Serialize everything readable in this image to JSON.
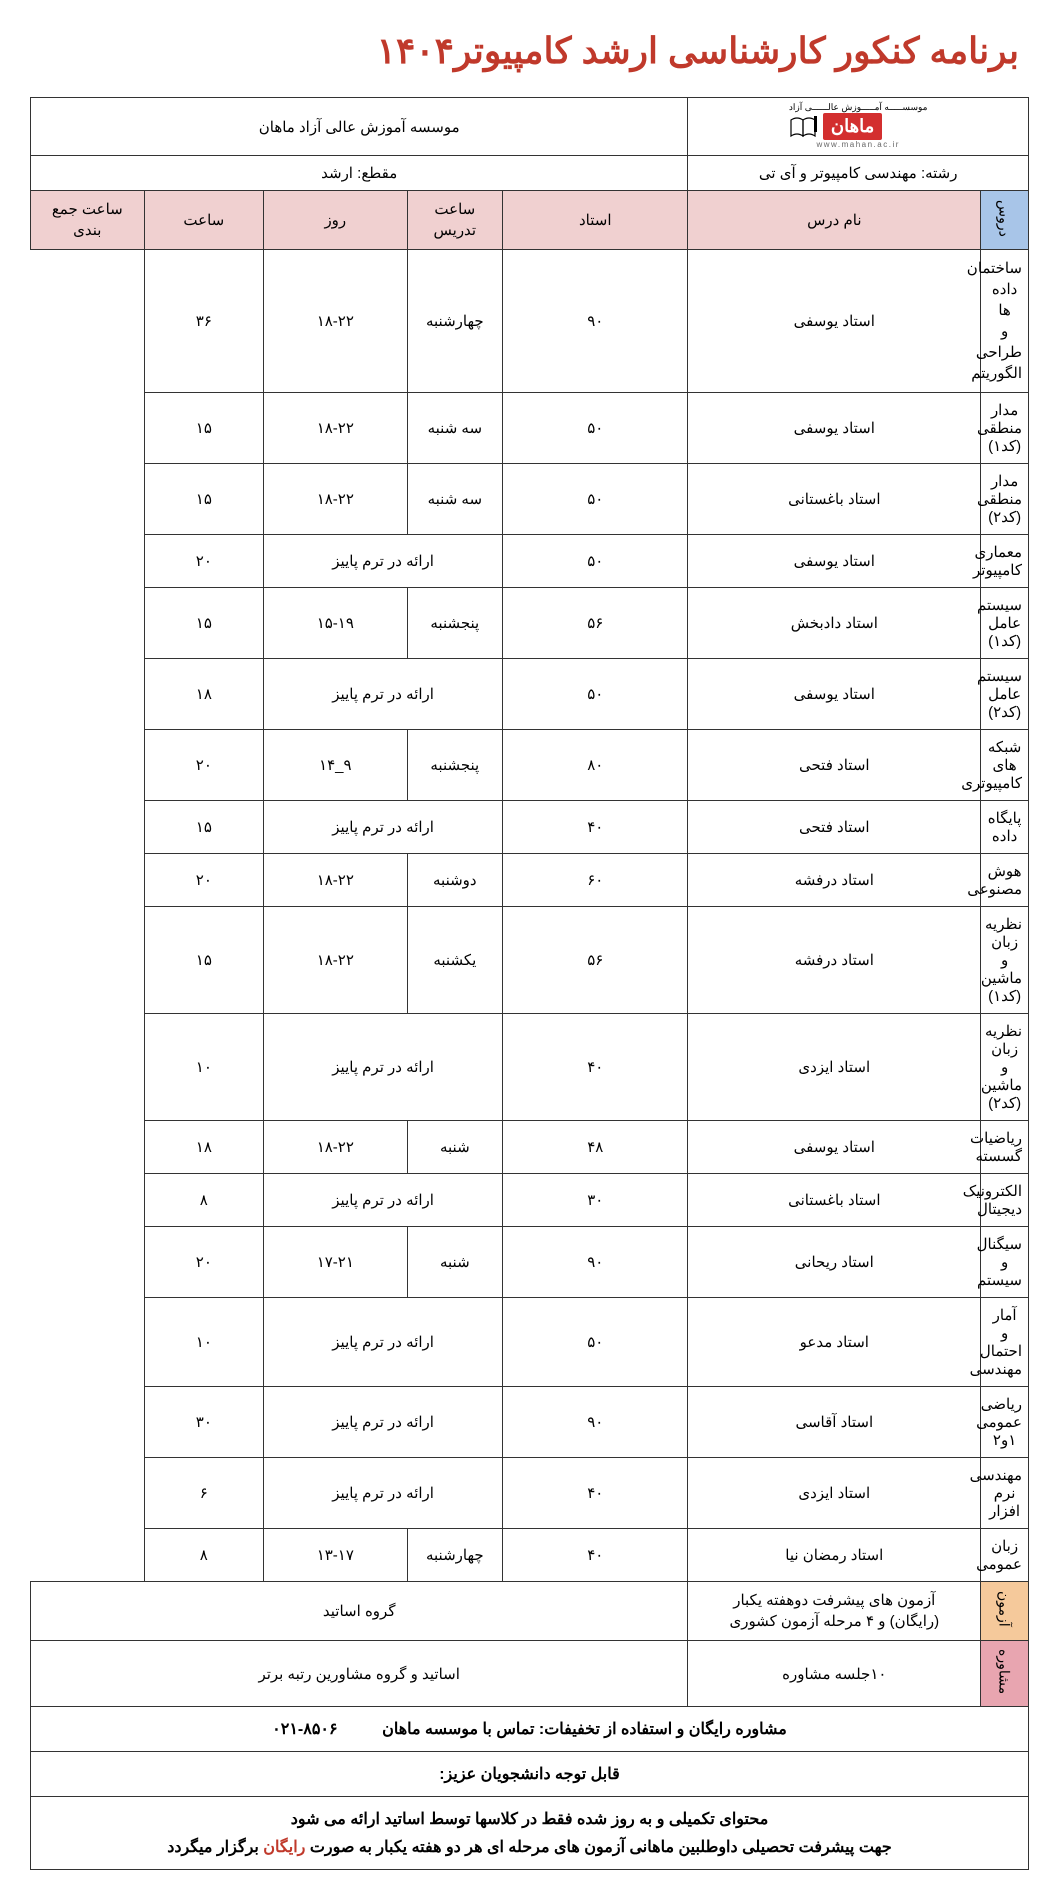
{
  "page": {
    "title": "برنامه کنکور کارشناسی ارشد کامپیوتر۱۴۰۴"
  },
  "header": {
    "logo_top": "موسســـــه آمـــــوزش عالــــــی آزاد",
    "logo_main": "ماهان",
    "logo_url": "www.mahan.ac.ir",
    "institute": "موسسه آموزش عالی آزاد ماهان",
    "field": "رشته: مهندسی کامپیوتر و آی تی",
    "level": "مقطع: ارشد"
  },
  "columns": {
    "cat": "دروس",
    "name": "نام درس",
    "teacher": "استاد",
    "teaching_hours": "ساعت تدریس",
    "day": "روز",
    "time": "ساعت",
    "summary_hours": "ساعت جمع بندی"
  },
  "fall_term": "ارائه در ترم پاییز",
  "courses": [
    {
      "name_l1": "ساختمان داده ها",
      "name_l2": "و طراحی الگوریتم",
      "teacher": "استاد یوسفی",
      "hours": "۹۰",
      "day": "چهارشنبه",
      "time": "۱۸-۲۲",
      "summary": "۳۶",
      "fall": false
    },
    {
      "name": "مدار منطقی (کد۱)",
      "teacher": "استاد یوسفی",
      "hours": "۵۰",
      "day": "سه شنبه",
      "time": "۱۸-۲۲",
      "summary": "۱۵",
      "fall": false
    },
    {
      "name": "مدار منطقی (کد۲)",
      "teacher": "استاد باغستانی",
      "hours": "۵۰",
      "day": "سه شنبه",
      "time": "۱۸-۲۲",
      "summary": "۱۵",
      "fall": false
    },
    {
      "name": "معماری کامپیوتر",
      "teacher": "استاد یوسفی",
      "hours": "۵۰",
      "day": "",
      "time": "",
      "summary": "۲۰",
      "fall": true
    },
    {
      "name": "سیستم عامل (کد۱)",
      "teacher": "استاد دادبخش",
      "hours": "۵۶",
      "day": "پنجشنبه",
      "time": "۱۵-۱۹",
      "summary": "۱۵",
      "fall": false
    },
    {
      "name": "سیستم عامل (کد۲)",
      "teacher": "استاد یوسفی",
      "hours": "۵۰",
      "day": "",
      "time": "",
      "summary": "۱۸",
      "fall": true
    },
    {
      "name": "شبکه های کامپیوتری",
      "teacher": "استاد فتحی",
      "hours": "۸۰",
      "day": "پنجشنبه",
      "time": "۹_۱۴",
      "summary": "۲۰",
      "fall": false
    },
    {
      "name": "پایگاه داده",
      "teacher": "استاد فتحی",
      "hours": "۴۰",
      "day": "",
      "time": "",
      "summary": "۱۵",
      "fall": true
    },
    {
      "name": "هوش مصنوعی",
      "teacher": "استاد درفشه",
      "hours": "۶۰",
      "day": "دوشنبه",
      "time": "۱۸-۲۲",
      "summary": "۲۰",
      "fall": false
    },
    {
      "name": "نظریه زبان و ماشین (کد۱)",
      "teacher": "استاد درفشه",
      "hours": "۵۶",
      "day": "یکشنبه",
      "time": "۱۸-۲۲",
      "summary": "۱۵",
      "fall": false
    },
    {
      "name": "نظریه زبان و ماشین (کد۲)",
      "teacher": "استاد ایزدی",
      "hours": "۴۰",
      "day": "",
      "time": "",
      "summary": "۱۰",
      "fall": true
    },
    {
      "name": "ریاضیات گسسته",
      "teacher": "استاد یوسفی",
      "hours": "۴۸",
      "day": "شنبه",
      "time": "۱۸-۲۲",
      "summary": "۱۸",
      "fall": false
    },
    {
      "name": "الکترونیک دیجیتال",
      "teacher": "استاد باغستانی",
      "hours": "۳۰",
      "day": "",
      "time": "",
      "summary": "۸",
      "fall": true
    },
    {
      "name": "سیگنال و سیستم",
      "teacher": "استاد ریحانی",
      "hours": "۹۰",
      "day": "شنبه",
      "time": "۱۷-۲۱",
      "summary": "۲۰",
      "fall": false
    },
    {
      "name": "آمار و احتمال مهندسی",
      "teacher": "استاد مدعو",
      "hours": "۵۰",
      "day": "",
      "time": "",
      "summary": "۱۰",
      "fall": true
    },
    {
      "name": "ریاضی عمومی ۱و۲",
      "teacher": "استاد آقاسی",
      "hours": "۹۰",
      "day": "",
      "time": "",
      "summary": "۳۰",
      "fall": true
    },
    {
      "name": "مهندسی نرم افزار",
      "teacher": "استاد ایزدی",
      "hours": "۴۰",
      "day": "",
      "time": "",
      "summary": "۶",
      "fall": true
    },
    {
      "name": "زبان عمومی",
      "teacher": "استاد رمضان نیا",
      "hours": "۴۰",
      "day": "چهارشنبه",
      "time": "۱۳-۱۷",
      "summary": "۸",
      "fall": false
    }
  ],
  "exam": {
    "label": "آزمون",
    "desc_l1": "آزمون های پیشرفت دوهفته یکبار",
    "desc_l2": "(رایگان) و ۴ مرحله آزمون کشوری",
    "group": "گروه اساتید"
  },
  "counsel": {
    "label": "مشاوره",
    "sessions": "۱۰جلسه مشاوره",
    "group": "اساتید و گروه مشاورین رتبه برتر"
  },
  "footer": {
    "consult_text": "مشاوره رایگان و استفاده از تخفیفات: تماس با موسسه ماهان",
    "phone": "۰۲۱-۸۵۰۶",
    "notice_header": "قابل توجه دانشجویان عزیز:",
    "notice_1": "محتوای تکمیلی و به روز شده  فقط در کلاسها توسط اساتید ارائه می شود",
    "notice_2_pre": "جهت پیشرفت تحصیلی داوطلبین ماهانی آزمون های مرحله ای هر دو هفته یکبار به صورت ",
    "notice_2_red": "رایگان",
    "notice_2_post": " برگزار میگردد"
  }
}
